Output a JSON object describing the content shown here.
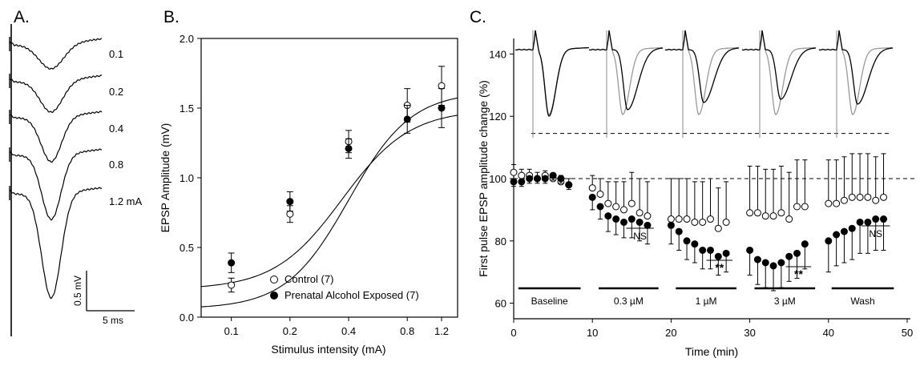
{
  "panels": {
    "a": {
      "label": "A.",
      "trace_labels": [
        "0.1",
        "0.2",
        "0.4",
        "0.8",
        "1.2 mA"
      ],
      "scale_v": "0.5 mV",
      "scale_t": "5 ms"
    },
    "b": {
      "label": "B."
    },
    "c": {
      "label": "C.",
      "bars": [
        "Baseline",
        "0.3 µM",
        "1 µM",
        "3 µM",
        "Wash"
      ],
      "annotations": [
        "NS",
        "**",
        "**",
        "NS"
      ]
    }
  },
  "chart_data": [
    {
      "type": "scatter",
      "panel": "B",
      "xlabel": "Stimulus intensity (mA)",
      "ylabel": "EPSP Amplitude (mV)",
      "x_scale": "log",
      "x_ticks": [
        "0.1",
        "0.2",
        "0.4",
        "0.8",
        "1.2"
      ],
      "y_ticks": [
        "0.0",
        "0.5",
        "1.0",
        "1.5",
        "2.0"
      ],
      "ylim": [
        0,
        2.0
      ],
      "legend_position": "bottom-left",
      "x": [
        0.1,
        0.2,
        0.4,
        0.8,
        1.2
      ],
      "series": [
        {
          "name": "Control (7)",
          "marker": "open-circle",
          "values": [
            0.23,
            0.74,
            1.26,
            1.52,
            1.66
          ],
          "err": [
            0.05,
            0.06,
            0.08,
            0.12,
            0.14
          ]
        },
        {
          "name": "Prenatal Alcohol Exposed (7)",
          "marker": "filled-circle",
          "values": [
            0.39,
            0.83,
            1.21,
            1.42,
            1.5
          ],
          "err": [
            0.07,
            0.07,
            0.07,
            0.1,
            0.14
          ]
        }
      ],
      "fits": [
        {
          "series": "Control (7)",
          "bottom": 0.06,
          "top": 1.62,
          "x50": 0.4,
          "slope": 2.7
        },
        {
          "series": "Prenatal Alcohol Exposed (7)",
          "bottom": 0.2,
          "top": 1.49,
          "x50": 0.37,
          "slope": 2.5
        }
      ]
    },
    {
      "type": "scatter",
      "panel": "C",
      "xlabel": "Time (min)",
      "ylabel": "First pulse EPSP amplitude change (%)",
      "x_ticks": [
        "0",
        "10",
        "20",
        "30",
        "40",
        "50"
      ],
      "y_ticks": [
        "60",
        "80",
        "100",
        "120",
        "140"
      ],
      "xlim": [
        0,
        50
      ],
      "ylim": [
        55,
        145
      ],
      "reference_lines": [
        100,
        114.5
      ],
      "x": [
        0,
        1,
        2,
        3,
        4,
        5,
        6,
        7,
        10,
        11,
        12,
        13,
        14,
        15,
        16,
        17,
        20,
        21,
        22,
        23,
        24,
        25,
        26,
        27,
        30,
        31,
        32,
        33,
        34,
        35,
        36,
        37,
        40,
        41,
        42,
        43,
        44,
        45,
        46,
        47
      ],
      "series": [
        {
          "name": "Control",
          "marker": "open-circle",
          "values": [
            102,
            101,
            101,
            100,
            101,
            100,
            99,
            98,
            97,
            95,
            92,
            91,
            90,
            92,
            89,
            88,
            87,
            87,
            87,
            86,
            86,
            87,
            84,
            86,
            89,
            89,
            88,
            88,
            89,
            87,
            91,
            91,
            92,
            92,
            93,
            94,
            94,
            94,
            93,
            94
          ],
          "err": [
            2.5,
            2,
            2,
            2,
            1.5,
            1.5,
            2,
            2,
            4,
            5,
            7,
            8,
            9,
            10,
            11,
            11,
            13,
            13,
            13,
            13,
            13,
            13,
            13,
            13,
            15,
            15,
            15,
            15,
            15,
            15,
            15,
            15,
            14,
            14,
            14,
            14,
            14,
            14,
            14,
            14
          ]
        },
        {
          "name": "Prenatal Alcohol Exposed",
          "marker": "filled-circle",
          "values": [
            99,
            99,
            100,
            100,
            100,
            101,
            100,
            98,
            94,
            91,
            88,
            87,
            86,
            87,
            86,
            85,
            85,
            83,
            80,
            79,
            77,
            77,
            75,
            76,
            77,
            74,
            73,
            72,
            73,
            75,
            76,
            79,
            80,
            82,
            83,
            84,
            86,
            86,
            87,
            87
          ],
          "err": [
            1.5,
            1.5,
            1.5,
            1.5,
            1.5,
            1.5,
            1.5,
            1.5,
            4,
            4,
            5,
            5,
            5,
            6,
            6,
            6,
            6,
            6,
            6,
            6,
            6,
            6,
            6,
            6,
            8,
            8,
            8,
            8,
            8,
            8,
            8,
            8,
            10,
            10,
            10,
            10,
            10,
            10,
            10,
            10
          ]
        }
      ]
    }
  ]
}
